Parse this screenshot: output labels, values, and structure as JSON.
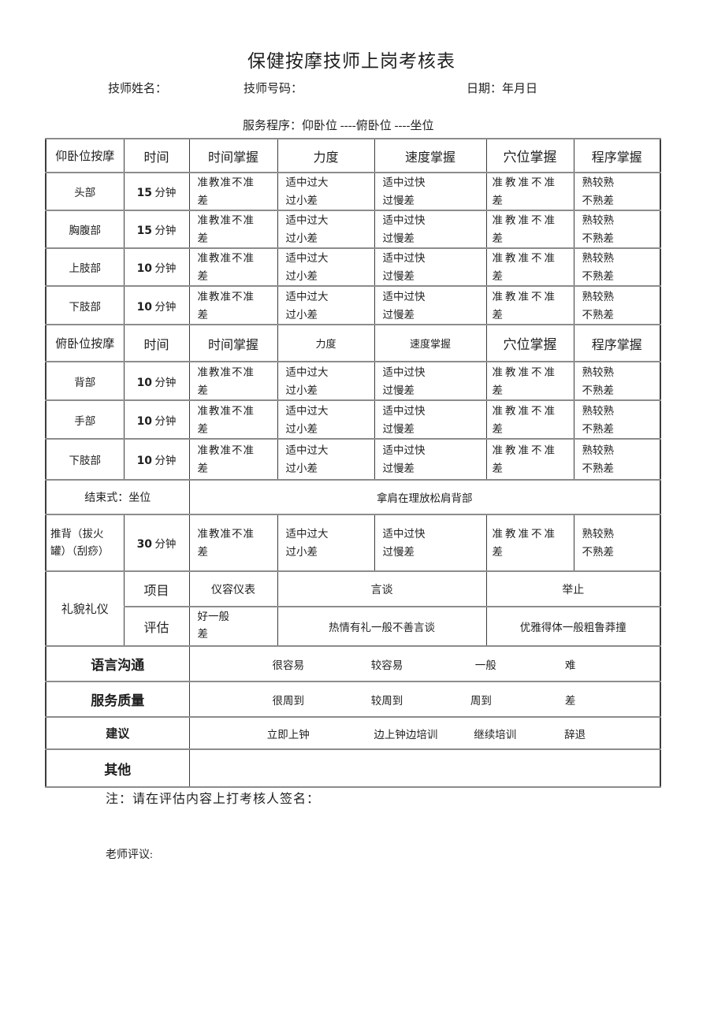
{
  "doc": {
    "title": "保健按摩技师上岗考核表",
    "fields": {
      "technician_name": "技师姓名：",
      "technician_number": "技师号码：",
      "date": "日期：年月日"
    },
    "procedure": "服务程序：仰卧位 ----俯卧位 ----坐位",
    "note": "注：请在评估内容上打考核人签名：",
    "teacher_comment": "老师评议:"
  },
  "table": {
    "rows": [
      {
        "name": "header-row-supine",
        "cells": [
          {
            "text": "仰卧位按摩",
            "cls": "hdr h15",
            "name": "col-header-supine-massage"
          },
          {
            "text": "时间",
            "cls": "hdr",
            "name": "col-header-time"
          },
          {
            "text": "时间掌握",
            "cls": "hdr",
            "name": "col-header-time-control"
          },
          {
            "text": "力度",
            "cls": "hdr",
            "name": "col-header-force"
          },
          {
            "text": "速度掌握",
            "cls": "hdr",
            "name": "col-header-speed-control"
          },
          {
            "text": "穴位掌握",
            "cls": "hdr h17",
            "name": "col-header-acupoint-control"
          },
          {
            "text": "程序掌握",
            "cls": "hdr",
            "name": "col-header-procedure-control"
          }
        ]
      },
      {
        "name": "row-head",
        "cells": [
          {
            "text": "头部",
            "cls": "part",
            "name": "body-part-cell"
          },
          {
            "num": "15",
            "unit": "分钟",
            "cls": "time",
            "name": "time-cell"
          },
          {
            "lines": [
              "准教准不准",
              "差"
            ],
            "cls": "eval ls1",
            "name": "eval-time-control"
          },
          {
            "lines": [
              "适中过大",
              "过小差"
            ],
            "cls": "eval",
            "name": "eval-force"
          },
          {
            "lines": [
              "适中过快",
              "过慢差"
            ],
            "cls": "eval",
            "name": "eval-speed"
          },
          {
            "lines": [
              "准教准不准",
              "差"
            ],
            "cls": "eval sp",
            "name": "eval-acupoint"
          },
          {
            "lines": [
              "熟较熟",
              "不熟差"
            ],
            "cls": "eval",
            "name": "eval-procedure"
          }
        ]
      },
      {
        "name": "row-chest-abdomen",
        "cells": [
          {
            "text": "胸腹部",
            "cls": "part",
            "name": "body-part-cell"
          },
          {
            "num": "15",
            "unit": "分钟",
            "cls": "time",
            "name": "time-cell"
          },
          {
            "lines": [
              "准教准不准",
              "差"
            ],
            "cls": "eval ls1",
            "name": "eval-time-control"
          },
          {
            "lines": [
              "适中过大",
              "过小差"
            ],
            "cls": "eval",
            "name": "eval-force"
          },
          {
            "lines": [
              "适中过快",
              "过慢差"
            ],
            "cls": "eval",
            "name": "eval-speed"
          },
          {
            "lines": [
              "准教准不准",
              "差"
            ],
            "cls": "eval sp",
            "name": "eval-acupoint"
          },
          {
            "lines": [
              "熟较熟",
              "不熟差"
            ],
            "cls": "eval",
            "name": "eval-procedure"
          }
        ]
      },
      {
        "name": "row-upper-limb",
        "cells": [
          {
            "text": "上肢部",
            "cls": "part",
            "name": "body-part-cell"
          },
          {
            "num": "10",
            "unit": "分钟",
            "cls": "time",
            "name": "time-cell"
          },
          {
            "lines": [
              "准教准不准",
              "差"
            ],
            "cls": "eval ls1",
            "name": "eval-time-control"
          },
          {
            "lines": [
              "适中过大",
              "过小差"
            ],
            "cls": "eval",
            "name": "eval-force"
          },
          {
            "lines": [
              "适中过快",
              "过慢差"
            ],
            "cls": "eval",
            "name": "eval-speed"
          },
          {
            "lines": [
              "准教准不准",
              "差"
            ],
            "cls": "eval sp",
            "name": "eval-acupoint"
          },
          {
            "lines": [
              "熟较熟",
              "不熟差"
            ],
            "cls": "eval",
            "name": "eval-procedure"
          }
        ]
      },
      {
        "name": "row-lower-limb",
        "cells": [
          {
            "text": "下肢部",
            "cls": "part",
            "name": "body-part-cell"
          },
          {
            "num": "10",
            "unit": "分钟",
            "cls": "time",
            "name": "time-cell"
          },
          {
            "lines": [
              "准教准不准",
              "差"
            ],
            "cls": "eval ls1",
            "name": "eval-time-control"
          },
          {
            "lines": [
              "适中过大",
              "过小差"
            ],
            "cls": "eval",
            "name": "eval-force"
          },
          {
            "lines": [
              "适中过快",
              "过慢差"
            ],
            "cls": "eval",
            "name": "eval-speed"
          },
          {
            "lines": [
              "准教准不准",
              "差"
            ],
            "cls": "eval sp",
            "name": "eval-acupoint"
          },
          {
            "lines": [
              "熟较熟",
              "不熟差"
            ],
            "cls": "eval",
            "name": "eval-procedure"
          }
        ]
      },
      {
        "name": "header-row-prone",
        "cells": [
          {
            "text": "俯卧位按摩",
            "cls": "hdr h15",
            "name": "col-header-prone-massage"
          },
          {
            "text": "时间",
            "cls": "hdr",
            "name": "col-header-time"
          },
          {
            "text": "时间掌握",
            "cls": "hdr",
            "name": "col-header-time-control"
          },
          {
            "text": "力度",
            "cls": "hdr sm",
            "name": "col-header-force"
          },
          {
            "text": "速度掌握",
            "cls": "hdr sm",
            "name": "col-header-speed-control"
          },
          {
            "text": "穴位掌握",
            "cls": "hdr h17",
            "name": "col-header-acupoint-control"
          },
          {
            "text": "程序掌握",
            "cls": "hdr",
            "name": "col-header-procedure-control"
          }
        ]
      },
      {
        "name": "row-back",
        "cells": [
          {
            "text": "背部",
            "cls": "part",
            "name": "body-part-cell"
          },
          {
            "num": "10",
            "unit": "分钟",
            "cls": "time",
            "name": "time-cell"
          },
          {
            "lines": [
              "准教准不准",
              "差"
            ],
            "cls": "eval ls1",
            "name": "eval-time-control"
          },
          {
            "lines": [
              "适中过大",
              "过小差"
            ],
            "cls": "eval",
            "name": "eval-force"
          },
          {
            "lines": [
              "适中过快",
              "过慢差"
            ],
            "cls": "eval",
            "name": "eval-speed"
          },
          {
            "lines": [
              "准教准不准",
              "差"
            ],
            "cls": "eval sp",
            "name": "eval-acupoint"
          },
          {
            "lines": [
              "熟较熟",
              "不熟差"
            ],
            "cls": "eval",
            "name": "eval-procedure"
          }
        ]
      },
      {
        "name": "row-hand",
        "cells": [
          {
            "text": "手部",
            "cls": "part",
            "name": "body-part-cell"
          },
          {
            "num": "10",
            "unit": "分钟",
            "cls": "time",
            "name": "time-cell"
          },
          {
            "lines": [
              "准教准不准",
              "差"
            ],
            "cls": "eval ls1",
            "name": "eval-time-control"
          },
          {
            "lines": [
              "适中过大",
              "过小差"
            ],
            "cls": "eval",
            "name": "eval-force"
          },
          {
            "lines": [
              "适中过快",
              "过慢差"
            ],
            "cls": "eval",
            "name": "eval-speed"
          },
          {
            "lines": [
              "准教准不准",
              "差"
            ],
            "cls": "eval sp",
            "name": "eval-acupoint"
          },
          {
            "lines": [
              "熟较熟",
              "不熟差"
            ],
            "cls": "eval",
            "name": "eval-procedure"
          }
        ]
      },
      {
        "name": "row-lower-limb-prone",
        "cells": [
          {
            "text": "下肢部",
            "cls": "part",
            "name": "body-part-cell"
          },
          {
            "num": "10",
            "unit": "分钟",
            "cls": "time",
            "name": "time-cell"
          },
          {
            "lines": [
              "准教准不准",
              "差"
            ],
            "cls": "eval ls1",
            "name": "eval-time-control"
          },
          {
            "lines": [
              "适中过大",
              "过小差"
            ],
            "cls": "eval",
            "name": "eval-force"
          },
          {
            "lines": [
              "适中过快",
              "过慢差"
            ],
            "cls": "eval",
            "name": "eval-speed"
          },
          {
            "lines": [
              "准教准不准",
              "差"
            ],
            "cls": "eval sp",
            "name": "eval-acupoint"
          },
          {
            "lines": [
              "熟较熟",
              "不熟差"
            ],
            "cls": "eval",
            "name": "eval-procedure"
          }
        ]
      },
      {
        "name": "row-closing",
        "cells": [
          {
            "text": "结束式：坐位",
            "colspan": 2,
            "cls": "center h14",
            "name": "closing-label"
          },
          {
            "text": "拿肩在理放松肩背部",
            "colspan": 5,
            "cls": "center",
            "name": "closing-content"
          }
        ]
      },
      {
        "name": "row-back-push",
        "cells": [
          {
            "text": "推背（拔火罐）（刮痧）",
            "cls": "wrap",
            "name": "body-part-cell"
          },
          {
            "num": "30",
            "unit": "分钟",
            "cls": "time",
            "name": "time-cell"
          },
          {
            "lines": [
              "准教准不准",
              "差"
            ],
            "cls": "eval ls1",
            "name": "eval-time-control"
          },
          {
            "lines": [
              "适中过大",
              "过小差"
            ],
            "cls": "eval",
            "name": "eval-force"
          },
          {
            "lines": [
              "适中过快",
              "过慢差"
            ],
            "cls": "eval",
            "name": "eval-speed"
          },
          {
            "lines": [
              "准教准不准",
              "差"
            ],
            "cls": "eval sp",
            "name": "eval-acupoint"
          },
          {
            "lines": [
              "熟较熟",
              "不熟差"
            ],
            "cls": "eval",
            "name": "eval-procedure"
          }
        ]
      },
      {
        "name": "row-etiquette-items",
        "cells": [
          {
            "text": "礼貌礼仪",
            "rowspan": 2,
            "cls": "part h15",
            "name": "row-label-etiquette"
          },
          {
            "text": "项目",
            "cls": "hdr",
            "name": "etiquette-item-label"
          },
          {
            "text": "仪容仪表",
            "cls": "center h14",
            "name": "item-appearance"
          },
          {
            "text": "言谈",
            "colspan": 2,
            "cls": "center h14",
            "name": "item-speech"
          },
          {
            "text": "举止",
            "colspan": 2,
            "cls": "center h14",
            "name": "item-manner"
          }
        ]
      },
      {
        "name": "row-etiquette-eval",
        "cells": [
          {
            "text": "评估",
            "cls": "hdr",
            "name": "etiquette-eval-label"
          },
          {
            "lines": [
              "好一般",
              "差"
            ],
            "cls": "eval top",
            "name": "eval-appearance"
          },
          {
            "text": "热情有礼一般不善言谈",
            "colspan": 2,
            "cls": "center",
            "name": "eval-speech"
          },
          {
            "text": "优雅得体一般粗鲁莽撞",
            "colspan": 2,
            "cls": "center",
            "name": "eval-manner"
          }
        ]
      },
      {
        "name": "row-language",
        "cells": [
          {
            "text": "语言沟通",
            "colspan": 2,
            "cls": "biglabel",
            "name": "row-label-language"
          },
          {
            "colspan": 5,
            "cls": "optcell",
            "name": "language-options",
            "opts": [
              {
                "text": "很容易",
                "left": "21%"
              },
              {
                "text": "较容易",
                "left": "42%"
              },
              {
                "text": "一般",
                "left": "63%"
              },
              {
                "text": "难",
                "left": "81%"
              }
            ]
          }
        ]
      },
      {
        "name": "row-service-quality",
        "cells": [
          {
            "text": "服务质量",
            "colspan": 2,
            "cls": "biglabel",
            "name": "row-label-service-quality"
          },
          {
            "colspan": 5,
            "cls": "optcell",
            "name": "service-quality-options",
            "opts": [
              {
                "text": "很周到",
                "left": "21%"
              },
              {
                "text": "较周到",
                "left": "42%"
              },
              {
                "text": "周到",
                "left": "62%"
              },
              {
                "text": "差",
                "left": "81%"
              }
            ]
          }
        ]
      },
      {
        "name": "row-suggestion",
        "cells": [
          {
            "text": "建议",
            "colspan": 2,
            "cls": "midlabel",
            "name": "row-label-suggestion"
          },
          {
            "colspan": 5,
            "cls": "optcell",
            "name": "suggestion-options",
            "opts": [
              {
                "text": "立即上钟",
                "left": "21%"
              },
              {
                "text": "边上钟边培训",
                "left": "46%"
              },
              {
                "text": "继续培训",
                "left": "65%"
              },
              {
                "text": "辞退",
                "left": "82%"
              }
            ]
          }
        ]
      },
      {
        "name": "row-other",
        "cells": [
          {
            "text": "其他",
            "colspan": 2,
            "cls": "biglabel",
            "name": "row-label-other"
          },
          {
            "text": "",
            "colspan": 5,
            "name": "other-content"
          }
        ]
      }
    ]
  }
}
